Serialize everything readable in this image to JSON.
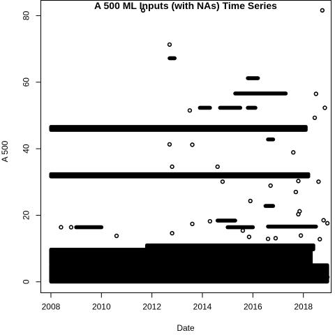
{
  "chart_data": {
    "type": "scatter",
    "title": "A 500 ML Inputs (with NAs) Time Series",
    "xlabel": "Date",
    "ylabel": "A 500",
    "xlim": [
      2007.6,
      2019.1
    ],
    "ylim": [
      -3.3,
      84.6
    ],
    "x_ticks": [
      2008,
      2010,
      2012,
      2014,
      2016,
      2018
    ],
    "y_ticks": [
      0,
      20,
      40,
      60,
      80
    ],
    "grid": false,
    "legend": "none",
    "marker": "open-circle",
    "dense_bands": [
      {
        "x_start": 2008.0,
        "x_end": 2018.95,
        "y_low": 0.0,
        "y_high": 5.0
      },
      {
        "x_start": 2008.0,
        "x_end": 2018.3,
        "y_low": 5.5,
        "y_high": 9.7
      },
      {
        "x_start": 2011.8,
        "x_end": 2018.4,
        "y_low": 9.7,
        "y_high": 11.0
      },
      {
        "x_start": 2008.0,
        "x_end": 2018.2,
        "y_low": 31.6,
        "y_high": 32.4
      },
      {
        "x_start": 2008.0,
        "x_end": 2018.1,
        "y_low": 45.6,
        "y_high": 46.6
      }
    ],
    "segments": [
      {
        "x_start": 2009.0,
        "x_end": 2010.0,
        "y": 16.4
      },
      {
        "x_start": 2015.0,
        "x_end": 2016.0,
        "y": 16.4
      },
      {
        "x_start": 2016.6,
        "x_end": 2018.5,
        "y": 16.6
      },
      {
        "x_start": 2014.6,
        "x_end": 2015.3,
        "y": 18.4
      },
      {
        "x_start": 2013.9,
        "x_end": 2014.3,
        "y": 52.3
      },
      {
        "x_start": 2014.7,
        "x_end": 2015.5,
        "y": 52.3
      },
      {
        "x_start": 2015.8,
        "x_end": 2016.1,
        "y": 52.3
      },
      {
        "x_start": 2015.3,
        "x_end": 2017.3,
        "y": 56.6
      },
      {
        "x_start": 2015.8,
        "x_end": 2016.2,
        "y": 61.2
      },
      {
        "x_start": 2012.7,
        "x_end": 2012.9,
        "y": 67.2
      },
      {
        "x_start": 2016.5,
        "x_end": 2016.8,
        "y": 22.8
      },
      {
        "x_start": 2016.6,
        "x_end": 2016.8,
        "y": 42.8
      }
    ],
    "points": [
      {
        "x": 2008.4,
        "y": 16.4
      },
      {
        "x": 2008.8,
        "y": 16.4
      },
      {
        "x": 2010.6,
        "y": 13.8
      },
      {
        "x": 2011.65,
        "y": 81.6
      },
      {
        "x": 2018.75,
        "y": 81.6
      },
      {
        "x": 2012.7,
        "y": 71.3
      },
      {
        "x": 2012.7,
        "y": 41.3
      },
      {
        "x": 2013.6,
        "y": 41.2
      },
      {
        "x": 2012.8,
        "y": 34.6
      },
      {
        "x": 2014.6,
        "y": 34.6
      },
      {
        "x": 2013.5,
        "y": 51.5
      },
      {
        "x": 2012.8,
        "y": 14.6
      },
      {
        "x": 2013.6,
        "y": 17.4
      },
      {
        "x": 2014.8,
        "y": 30.1
      },
      {
        "x": 2014.3,
        "y": 18.2
      },
      {
        "x": 2015.9,
        "y": 24.3
      },
      {
        "x": 2016.7,
        "y": 28.9
      },
      {
        "x": 2017.6,
        "y": 38.9
      },
      {
        "x": 2017.7,
        "y": 27.0
      },
      {
        "x": 2017.8,
        "y": 30.3
      },
      {
        "x": 2017.85,
        "y": 21.2
      },
      {
        "x": 2017.8,
        "y": 20.3
      },
      {
        "x": 2018.6,
        "y": 30.1
      },
      {
        "x": 2018.5,
        "y": 56.5
      },
      {
        "x": 2018.45,
        "y": 49.3
      },
      {
        "x": 2018.85,
        "y": 52.3
      },
      {
        "x": 2018.8,
        "y": 18.5
      },
      {
        "x": 2018.95,
        "y": 17.6
      },
      {
        "x": 2018.65,
        "y": 12.8
      },
      {
        "x": 2016.6,
        "y": 12.9
      },
      {
        "x": 2016.9,
        "y": 13.1
      },
      {
        "x": 2016.2,
        "y": 7.0
      },
      {
        "x": 2015.85,
        "y": 13.5
      },
      {
        "x": 2015.6,
        "y": 15.4
      },
      {
        "x": 2017.9,
        "y": 13.9
      },
      {
        "x": 2014.5,
        "y": 5.8
      },
      {
        "x": 2018.9,
        "y": 4.2
      },
      {
        "x": 2018.95,
        "y": 1.4
      }
    ]
  }
}
